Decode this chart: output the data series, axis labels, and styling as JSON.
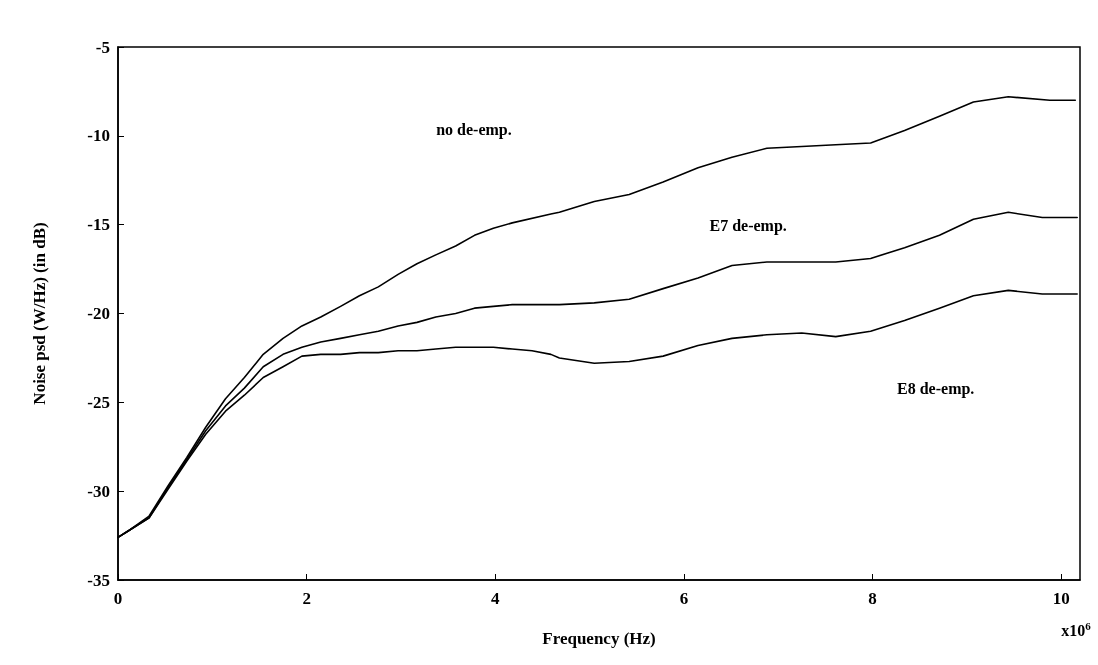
{
  "chart_data": {
    "type": "line",
    "xlabel": "Frequency (Hz)",
    "ylabel": "Noise psd (W/Hz) (in dB)",
    "xlim": [
      0,
      10.2
    ],
    "xticks": [
      0,
      2,
      4,
      6,
      8,
      10
    ],
    "ylim": [
      -35,
      -5
    ],
    "yticks": [
      -35,
      -30,
      -25,
      -20,
      -15,
      -10,
      -5
    ],
    "grid": false,
    "marker": "none",
    "line_style": "solid",
    "annotations": [
      "no de-emp.",
      "E7 de-emp.",
      "E8 de-emp.",
      "x10$^{6}$"
    ],
    "series": [
      {
        "color": "#000000",
        "x": [
          0,
          0.12,
          0.33,
          0.53,
          0.73,
          0.93,
          1.14,
          1.34,
          1.54,
          1.75,
          1.95,
          2.15,
          2.36,
          2.56,
          2.76,
          2.97,
          3.17,
          3.37,
          3.58,
          3.78,
          3.98,
          4.18,
          4.59,
          4.68,
          5.05,
          5.42,
          5.78,
          6.15,
          6.33,
          6.51,
          6.88,
          7.25,
          7.61,
          7.98,
          8.34,
          8.71,
          9.07,
          9.44,
          9.88,
          10.15
        ],
        "values": [
          -32.6,
          -32.2,
          -31.4,
          -29.7,
          -28.1,
          -26.4,
          -24.8,
          -23.6,
          -22.3,
          -21.4,
          -20.7,
          -20.2,
          -19.6,
          -19.0,
          -18.5,
          -17.8,
          -17.2,
          -16.7,
          -16.2,
          -15.6,
          -15.2,
          -14.9,
          -14.4,
          -14.3,
          -13.7,
          -13.3,
          -12.6,
          -11.8,
          -11.5,
          -11.2,
          -10.7,
          -10.6,
          -10.5,
          -10.4,
          -9.7,
          -8.9,
          -8.1,
          -7.8,
          -8.0,
          -8.0
        ]
      },
      {
        "color": "#000000",
        "x": [
          0,
          0.12,
          0.33,
          0.53,
          0.73,
          0.93,
          1.14,
          1.34,
          1.54,
          1.75,
          1.95,
          2.15,
          2.36,
          2.56,
          2.76,
          2.97,
          3.17,
          3.37,
          3.58,
          3.78,
          3.98,
          4.18,
          4.68,
          5.05,
          5.42,
          5.78,
          6.15,
          6.51,
          6.88,
          7.25,
          7.61,
          7.98,
          8.34,
          8.71,
          9.07,
          9.44,
          9.8,
          10.17
        ],
        "values": [
          -32.6,
          -32.2,
          -31.5,
          -29.8,
          -28.2,
          -26.6,
          -25.2,
          -24.2,
          -23.0,
          -22.3,
          -21.9,
          -21.6,
          -21.4,
          -21.2,
          -21.0,
          -20.7,
          -20.5,
          -20.2,
          -20.0,
          -19.7,
          -19.6,
          -19.5,
          -19.5,
          -19.4,
          -19.2,
          -18.6,
          -18.0,
          -17.3,
          -17.1,
          -17.1,
          -17.1,
          -16.9,
          -16.3,
          -15.6,
          -14.7,
          -14.3,
          -14.6,
          -14.6
        ]
      },
      {
        "color": "#000000",
        "x": [
          0,
          0.12,
          0.33,
          0.53,
          0.73,
          0.93,
          1.14,
          1.34,
          1.54,
          1.75,
          1.95,
          2.15,
          2.36,
          2.56,
          2.76,
          2.97,
          3.17,
          3.37,
          3.58,
          3.78,
          3.98,
          4.18,
          4.39,
          4.59,
          4.68,
          5.05,
          5.42,
          5.78,
          6.15,
          6.51,
          6.88,
          7.25,
          7.61,
          7.98,
          8.34,
          8.71,
          9.07,
          9.44,
          9.8,
          10.17
        ],
        "values": [
          -32.6,
          -32.2,
          -31.5,
          -29.9,
          -28.3,
          -26.8,
          -25.5,
          -24.6,
          -23.6,
          -23.0,
          -22.4,
          -22.3,
          -22.3,
          -22.2,
          -22.2,
          -22.1,
          -22.1,
          -22.0,
          -21.9,
          -21.9,
          -21.9,
          -22.0,
          -22.1,
          -22.3,
          -22.5,
          -22.8,
          -22.7,
          -22.4,
          -21.8,
          -21.4,
          -21.2,
          -21.1,
          -21.3,
          -21.0,
          -20.4,
          -19.7,
          -19.0,
          -18.7,
          -18.9,
          -18.9
        ]
      }
    ]
  }
}
